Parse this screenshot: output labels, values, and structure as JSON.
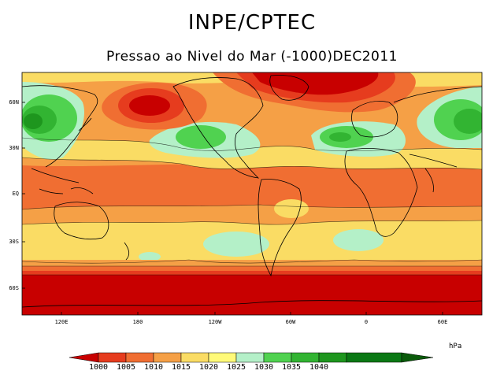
{
  "header": {
    "title": "INPE/CPTEC",
    "subtitle": "Pressao ao Nivel do Mar (-1000)DEC2011"
  },
  "map": {
    "projection": "cylindrical",
    "lat_labels": [
      "60N",
      "30N",
      "EQ",
      "30S",
      "60S"
    ],
    "lon_labels": [
      "120E",
      "180",
      "120W",
      "60W",
      "0",
      "60E"
    ],
    "features": [
      "Aleutian low (red, north Pacific)",
      "Icelandic low (red, north Atlantic)",
      "Siberian high (green)",
      "North Pacific subtropical high (green)",
      "Azores high (green)",
      "Circumpolar Antarctic trough (red)"
    ]
  },
  "colorbar": {
    "unit": "hPa",
    "levels": [
      "1000",
      "1005",
      "1010",
      "1015",
      "1020",
      "1025",
      "1030",
      "1035",
      "1040"
    ],
    "colors": [
      "#c80000",
      "#e63c1e",
      "#f06e32",
      "#f5a046",
      "#fadc64",
      "#fffa78",
      "#b4f0c8",
      "#50d250",
      "#32b432",
      "#1e961e",
      "#0a7814"
    ]
  }
}
